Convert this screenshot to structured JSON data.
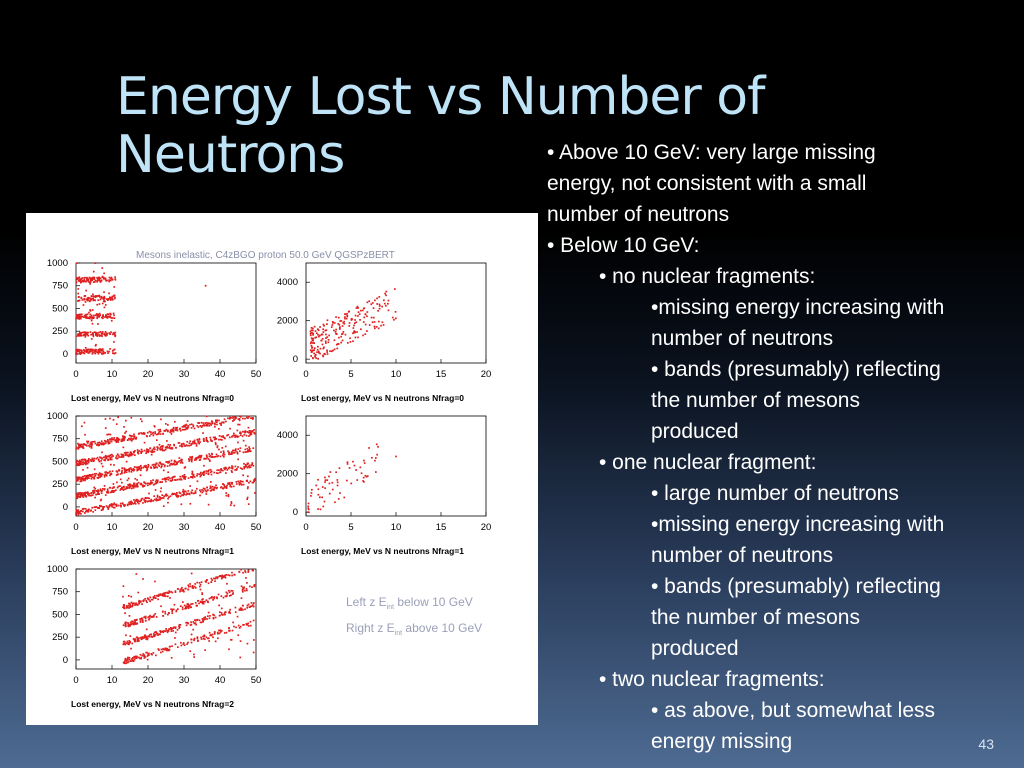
{
  "slide": {
    "title_line1": "Energy Lost vs Number of",
    "title_line2": "Neutrons",
    "slide_number": "43",
    "bullets": [
      {
        "level": 1,
        "text": "• Above 10 GeV: very large missing"
      },
      {
        "level": 1,
        "text": "energy, not consistent with a small"
      },
      {
        "level": 1,
        "text": "number of neutrons"
      },
      {
        "level": 1,
        "text": "• Below 10 GeV:"
      },
      {
        "level": 2,
        "text": "• no nuclear fragments:"
      },
      {
        "level": 3,
        "text": "•missing energy increasing with"
      },
      {
        "level": 3,
        "text": "number of neutrons"
      },
      {
        "level": 3,
        "text": "• bands (presumably) reflecting"
      },
      {
        "level": 3,
        "text": "the number of mesons"
      },
      {
        "level": 3,
        "text": "produced"
      },
      {
        "level": 2,
        "text": "• one nuclear fragment:"
      },
      {
        "level": 3,
        "text": "• large number of neutrons"
      },
      {
        "level": 3,
        "text": "•missing energy increasing with"
      },
      {
        "level": 3,
        "text": "number of neutrons"
      },
      {
        "level": 3,
        "text": "• bands (presumably) reflecting"
      },
      {
        "level": 3,
        "text": "the number of mesons"
      },
      {
        "level": 3,
        "text": "produced"
      },
      {
        "level": 2,
        "text": "• two nuclear fragments:"
      },
      {
        "level": 3,
        "text": "• as above, but somewhat less"
      },
      {
        "level": 3,
        "text": "energy missing"
      }
    ]
  },
  "figure": {
    "header": "Mesons inelastic,  C4zBGO proton 50.0 GeV QGSPzBERT",
    "legend_left": "Left  z E",
    "legend_left_sub": "int",
    "legend_left_tail": " below 10 GeV",
    "legend_right": "Right z E",
    "legend_right_sub": "int",
    "legend_right_tail": " above 10 GeV",
    "point_color": "#e02020"
  },
  "chart_data": [
    {
      "type": "scatter",
      "panel": "left-nfrag0",
      "xlabel": "Lost energy, MeV vs N neutrons Nfrag=0",
      "xlim": [
        0,
        50
      ],
      "ylim": [
        -100,
        1000
      ],
      "xticks": [
        "0",
        "10",
        "20",
        "30",
        "40",
        "50"
      ],
      "yticks": [
        "0",
        "250",
        "500",
        "750",
        "1000"
      ],
      "pattern": "bands",
      "bands": [
        {
          "slope": 1,
          "intercept": 20,
          "xmax": 11
        },
        {
          "slope": 1,
          "intercept": 210,
          "xmax": 11
        },
        {
          "slope": 1,
          "intercept": 410,
          "xmax": 11
        },
        {
          "slope": 1,
          "intercept": 610,
          "xmax": 11
        },
        {
          "slope": 1,
          "intercept": 810,
          "xmax": 11
        }
      ],
      "seed": 11,
      "count": 420,
      "outliers": [
        [
          36,
          750
        ]
      ]
    },
    {
      "type": "scatter",
      "panel": "right-nfrag0",
      "xlabel": "Lost energy, MeV vs N neutrons Nfrag=0",
      "xlim": [
        0,
        20
      ],
      "ylim": [
        -200,
        5000
      ],
      "xticks": [
        "0",
        "5",
        "10",
        "15",
        "20"
      ],
      "yticks": [
        "0",
        "2000",
        "4000"
      ],
      "pattern": "cloud",
      "cloud": {
        "xmin": 0.5,
        "xmax": 10,
        "ybase": 500,
        "yslope": 230,
        "yspread": 900
      },
      "seed": 23,
      "count": 230
    },
    {
      "type": "scatter",
      "panel": "left-nfrag1",
      "xlabel": "Lost energy, MeV vs N neutrons Nfrag=1",
      "xlim": [
        0,
        50
      ],
      "ylim": [
        -100,
        1000
      ],
      "xticks": [
        "0",
        "10",
        "20",
        "30",
        "40",
        "50"
      ],
      "yticks": [
        "0",
        "250",
        "500",
        "750",
        "1000"
      ],
      "pattern": "bands",
      "bands": [
        {
          "slope": 7,
          "intercept": -60,
          "xmax": 50
        },
        {
          "slope": 7,
          "intercept": 120,
          "xmax": 50
        },
        {
          "slope": 7,
          "intercept": 300,
          "xmax": 50
        },
        {
          "slope": 7,
          "intercept": 480,
          "xmax": 50
        },
        {
          "slope": 7,
          "intercept": 660,
          "xmax": 50
        }
      ],
      "seed": 37,
      "count": 1500
    },
    {
      "type": "scatter",
      "panel": "right-nfrag1",
      "xlabel": "Lost energy, MeV vs N neutrons Nfrag=1",
      "xlim": [
        0,
        20
      ],
      "ylim": [
        -200,
        5000
      ],
      "xticks": [
        "0",
        "5",
        "10",
        "15",
        "20"
      ],
      "yticks": [
        "0",
        "2000",
        "4000"
      ],
      "pattern": "cloud",
      "cloud": {
        "xmin": 0.2,
        "xmax": 8,
        "ybase": 300,
        "yslope": 300,
        "yspread": 900
      },
      "seed": 41,
      "count": 70,
      "outliers": [
        [
          8,
          3400
        ],
        [
          10,
          2900
        ]
      ]
    },
    {
      "type": "scatter",
      "panel": "left-nfrag2",
      "xlabel": "Lost energy, MeV vs N neutrons Nfrag=2",
      "xlim": [
        0,
        50
      ],
      "ylim": [
        -100,
        1000
      ],
      "xticks": [
        "0",
        "10",
        "20",
        "30",
        "40",
        "50"
      ],
      "yticks": [
        "0",
        "250",
        "500",
        "750",
        "1000"
      ],
      "pattern": "bands",
      "bands": [
        {
          "slope": 12,
          "intercept": -180,
          "xmax": 50,
          "xmin": 13
        },
        {
          "slope": 12,
          "intercept": 20,
          "xmax": 50,
          "xmin": 13
        },
        {
          "slope": 12,
          "intercept": 220,
          "xmax": 50,
          "xmin": 13
        },
        {
          "slope": 12,
          "intercept": 420,
          "xmax": 50,
          "xmin": 13
        }
      ],
      "seed": 53,
      "count": 650
    }
  ]
}
